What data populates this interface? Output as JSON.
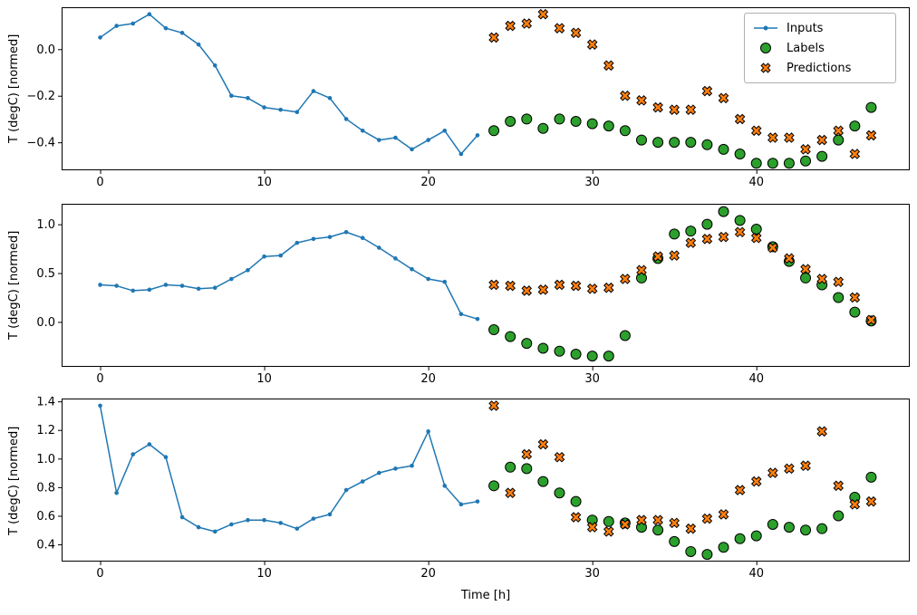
{
  "figure": {
    "xlabel": "Time [h]",
    "background": "#ffffff",
    "axes_edge_color": "#000000"
  },
  "legend": {
    "position": "upper right of first subplot",
    "items": [
      {
        "label": "Inputs",
        "marker": "line-with-dot",
        "color": "#1f77b4"
      },
      {
        "label": "Labels",
        "marker": "filled-circle",
        "color": "#2ca02c"
      },
      {
        "label": "Predictions",
        "marker": "filled-x",
        "color": "#ff7f0e"
      }
    ]
  },
  "chart_data": [
    {
      "type": "scatter",
      "title": "",
      "xlabel": "",
      "ylabel": "T (degC) [normed]",
      "xlim": [
        -2.35,
        49.35
      ],
      "ylim": [
        -0.52,
        0.18
      ],
      "xticks": [
        0,
        10,
        20,
        30,
        40
      ],
      "xticklabels": [
        "0",
        "10",
        "20",
        "30",
        "40"
      ],
      "yticks": [
        0.0,
        -0.2,
        -0.4
      ],
      "yticklabels": [
        "0.0",
        "−0.2",
        "−0.4"
      ],
      "grid": false,
      "series": {
        "inputs": {
          "name": "Inputs",
          "color": "#1f77b4",
          "x_start": 0,
          "values": [
            0.05,
            0.1,
            0.11,
            0.15,
            0.09,
            0.07,
            0.02,
            -0.07,
            -0.2,
            -0.21,
            -0.25,
            -0.26,
            -0.27,
            -0.18,
            -0.21,
            -0.3,
            -0.35,
            -0.39,
            -0.38,
            -0.43,
            -0.39,
            -0.35,
            -0.45,
            -0.37
          ]
        },
        "labels": {
          "name": "Labels",
          "color": "#2ca02c",
          "x_start": 24,
          "values": [
            -0.35,
            -0.31,
            -0.3,
            -0.34,
            -0.3,
            -0.31,
            -0.32,
            -0.33,
            -0.35,
            -0.39,
            -0.4,
            -0.4,
            -0.4,
            -0.41,
            -0.43,
            -0.45,
            -0.49,
            -0.49,
            -0.49,
            -0.48,
            -0.46,
            -0.39,
            -0.33,
            -0.25
          ]
        },
        "predictions": {
          "name": "Predictions",
          "color": "#ff7f0e",
          "x_start": 24,
          "values": [
            0.05,
            0.1,
            0.11,
            0.15,
            0.09,
            0.07,
            0.02,
            -0.07,
            -0.2,
            -0.22,
            -0.25,
            -0.26,
            -0.26,
            -0.18,
            -0.21,
            -0.3,
            -0.35,
            -0.38,
            -0.38,
            -0.43,
            -0.39,
            -0.35,
            -0.45,
            -0.37
          ]
        }
      }
    },
    {
      "type": "scatter",
      "title": "",
      "xlabel": "",
      "ylabel": "T (degC) [normed]",
      "xlim": [
        -2.35,
        49.35
      ],
      "ylim": [
        -0.46,
        1.21
      ],
      "xticks": [
        0,
        10,
        20,
        30,
        40
      ],
      "xticklabels": [
        "0",
        "10",
        "20",
        "30",
        "40"
      ],
      "yticks": [
        0.0,
        0.5,
        1.0
      ],
      "yticklabels": [
        "0.0",
        "0.5",
        "1.0"
      ],
      "grid": false,
      "series": {
        "inputs": {
          "name": "Inputs",
          "color": "#1f77b4",
          "x_start": 0,
          "values": [
            0.38,
            0.37,
            0.32,
            0.33,
            0.38,
            0.37,
            0.34,
            0.35,
            0.44,
            0.53,
            0.67,
            0.68,
            0.81,
            0.85,
            0.87,
            0.92,
            0.86,
            0.76,
            0.65,
            0.54,
            0.44,
            0.41,
            0.08,
            0.03
          ]
        },
        "labels": {
          "name": "Labels",
          "color": "#2ca02c",
          "x_start": 24,
          "values": [
            -0.08,
            -0.15,
            -0.22,
            -0.27,
            -0.3,
            -0.33,
            -0.35,
            -0.35,
            -0.14,
            0.45,
            0.65,
            0.9,
            0.93,
            1.0,
            1.13,
            1.04,
            0.95,
            0.77,
            0.62,
            0.45,
            0.38,
            0.25,
            0.1,
            0.01
          ]
        },
        "predictions": {
          "name": "Predictions",
          "color": "#ff7f0e",
          "x_start": 24,
          "values": [
            0.38,
            0.37,
            0.32,
            0.33,
            0.38,
            0.37,
            0.34,
            0.35,
            0.44,
            0.53,
            0.67,
            0.68,
            0.81,
            0.85,
            0.87,
            0.92,
            0.86,
            0.76,
            0.65,
            0.54,
            0.44,
            0.41,
            0.25,
            0.02
          ]
        }
      }
    },
    {
      "type": "scatter",
      "title": "",
      "xlabel": "Time [h]",
      "ylabel": "T (degC) [normed]",
      "xlim": [
        -2.35,
        49.35
      ],
      "ylim": [
        0.28,
        1.42
      ],
      "xticks": [
        0,
        10,
        20,
        30,
        40
      ],
      "xticklabels": [
        "0",
        "10",
        "20",
        "30",
        "40"
      ],
      "yticks": [
        0.4,
        0.6,
        0.8,
        1.0,
        1.2,
        1.4
      ],
      "yticklabels": [
        "0.4",
        "0.6",
        "0.8",
        "1.0",
        "1.2",
        "1.4"
      ],
      "grid": false,
      "series": {
        "inputs": {
          "name": "Inputs",
          "color": "#1f77b4",
          "x_start": 0,
          "values": [
            1.37,
            0.76,
            1.03,
            1.1,
            1.01,
            0.59,
            0.52,
            0.49,
            0.54,
            0.57,
            0.57,
            0.55,
            0.51,
            0.58,
            0.61,
            0.78,
            0.84,
            0.9,
            0.93,
            0.95,
            1.19,
            0.81,
            0.68,
            0.7
          ]
        },
        "labels": {
          "name": "Labels",
          "color": "#2ca02c",
          "x_start": 24,
          "values": [
            0.81,
            0.94,
            0.93,
            0.84,
            0.76,
            0.7,
            0.57,
            0.56,
            0.55,
            0.52,
            0.5,
            0.42,
            0.35,
            0.33,
            0.38,
            0.44,
            0.46,
            0.54,
            0.52,
            0.5,
            0.51,
            0.6,
            0.73,
            0.87
          ]
        },
        "predictions": {
          "name": "Predictions",
          "color": "#ff7f0e",
          "x_start": 24,
          "values": [
            1.37,
            0.76,
            1.03,
            1.1,
            1.01,
            0.59,
            0.52,
            0.49,
            0.54,
            0.57,
            0.57,
            0.55,
            0.51,
            0.58,
            0.61,
            0.78,
            0.84,
            0.9,
            0.93,
            0.95,
            1.19,
            0.81,
            0.68,
            0.7
          ]
        }
      }
    }
  ]
}
